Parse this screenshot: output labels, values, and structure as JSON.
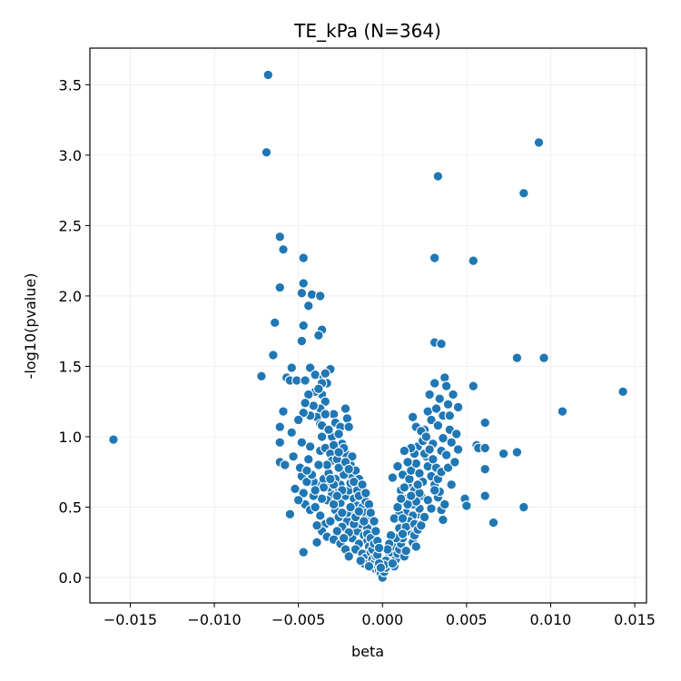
{
  "chart_data": {
    "type": "scatter",
    "title": "TE_kPa (N=364)",
    "xlabel": "beta",
    "ylabel": "-log10(pvalue)",
    "xlim": [
      -0.0174,
      0.0157
    ],
    "ylim": [
      -0.18,
      3.76
    ],
    "xticks": [
      -0.015,
      -0.01,
      -0.005,
      0.0,
      0.005,
      0.01,
      0.015
    ],
    "xtick_labels": [
      "−0.015",
      "−0.010",
      "−0.005",
      "0.000",
      "0.005",
      "0.010",
      "0.015"
    ],
    "yticks": [
      0.0,
      0.5,
      1.0,
      1.5,
      2.0,
      2.5,
      3.0,
      3.5
    ],
    "ytick_labels": [
      "0.0",
      "0.5",
      "1.0",
      "1.5",
      "2.0",
      "2.5",
      "3.0",
      "3.5"
    ],
    "grid": true,
    "color": "#1f77b4",
    "points": [
      [
        -0.016,
        0.98
      ],
      [
        -0.0068,
        3.57
      ],
      [
        -0.0069,
        3.02
      ],
      [
        -0.0061,
        2.42
      ],
      [
        -0.0059,
        2.33
      ],
      [
        -0.0047,
        2.27
      ],
      [
        -0.0061,
        2.06
      ],
      [
        -0.0047,
        2.09
      ],
      [
        -0.0048,
        2.02
      ],
      [
        -0.0042,
        2.01
      ],
      [
        -0.0037,
        2.0
      ],
      [
        -0.0044,
        1.93
      ],
      [
        -0.0064,
        1.81
      ],
      [
        -0.0047,
        1.79
      ],
      [
        -0.0036,
        1.76
      ],
      [
        -0.0048,
        1.68
      ],
      [
        -0.0038,
        1.72
      ],
      [
        -0.0065,
        1.58
      ],
      [
        -0.0072,
        1.43
      ],
      [
        -0.0054,
        1.49
      ],
      [
        -0.0057,
        1.42
      ],
      [
        -0.0055,
        1.4
      ],
      [
        -0.0051,
        1.4
      ],
      [
        -0.0046,
        1.4
      ],
      [
        -0.0043,
        1.49
      ],
      [
        -0.004,
        1.44
      ],
      [
        -0.0035,
        1.42
      ],
      [
        -0.0031,
        1.48
      ],
      [
        -0.0033,
        1.38
      ],
      [
        -0.0036,
        1.3
      ],
      [
        -0.0034,
        1.25
      ],
      [
        -0.0037,
        1.2
      ],
      [
        -0.0039,
        1.14
      ],
      [
        -0.0037,
        1.09
      ],
      [
        -0.0043,
        1.15
      ],
      [
        -0.0047,
        1.17
      ],
      [
        -0.0059,
        1.18
      ],
      [
        -0.0061,
        1.07
      ],
      [
        -0.0054,
        1.03
      ],
      [
        -0.0061,
        0.96
      ],
      [
        -0.0061,
        0.82
      ],
      [
        -0.0058,
        0.8
      ],
      [
        -0.0048,
        0.72
      ],
      [
        -0.0043,
        0.93
      ],
      [
        -0.0037,
        0.9
      ],
      [
        -0.0034,
        0.92
      ],
      [
        -0.0031,
        0.88
      ],
      [
        -0.003,
        0.83
      ],
      [
        -0.003,
        1.0
      ],
      [
        -0.0029,
        1.16
      ],
      [
        -0.0028,
        1.1
      ],
      [
        -0.0025,
        1.07
      ],
      [
        -0.0022,
        1.2
      ],
      [
        -0.0021,
        1.13
      ],
      [
        -0.002,
        1.07
      ],
      [
        -0.0024,
        0.95
      ],
      [
        -0.0027,
        0.84
      ],
      [
        -0.0022,
        0.88
      ],
      [
        -0.0019,
        0.8
      ],
      [
        -0.0018,
        0.72
      ],
      [
        -0.0016,
        0.76
      ],
      [
        -0.0014,
        0.7
      ],
      [
        -0.0013,
        0.64
      ],
      [
        -0.0023,
        0.73
      ],
      [
        -0.0025,
        0.66
      ],
      [
        -0.0027,
        0.62
      ],
      [
        -0.003,
        0.59
      ],
      [
        -0.0033,
        0.55
      ],
      [
        -0.0036,
        0.56
      ],
      [
        -0.0038,
        0.66
      ],
      [
        -0.0035,
        0.7
      ],
      [
        -0.0032,
        0.74
      ],
      [
        -0.0041,
        0.68
      ],
      [
        -0.0045,
        0.68
      ],
      [
        -0.0047,
        0.6
      ],
      [
        -0.0046,
        0.52
      ],
      [
        -0.0043,
        0.48
      ],
      [
        -0.004,
        0.5
      ],
      [
        -0.0037,
        0.44
      ],
      [
        -0.0034,
        0.38
      ],
      [
        -0.0036,
        0.33
      ],
      [
        -0.0039,
        0.37
      ],
      [
        -0.0033,
        0.29
      ],
      [
        -0.0031,
        0.4
      ],
      [
        -0.0028,
        0.48
      ],
      [
        -0.0025,
        0.53
      ],
      [
        -0.0022,
        0.58
      ],
      [
        -0.002,
        0.62
      ],
      [
        -0.0017,
        0.56
      ],
      [
        -0.0015,
        0.51
      ],
      [
        -0.0012,
        0.5
      ],
      [
        -0.001,
        0.46
      ],
      [
        -0.0018,
        0.44
      ],
      [
        -0.0021,
        0.4
      ],
      [
        -0.0024,
        0.36
      ],
      [
        -0.0027,
        0.33
      ],
      [
        -0.0029,
        0.27
      ],
      [
        -0.0025,
        0.24
      ],
      [
        -0.0022,
        0.2
      ],
      [
        -0.002,
        0.15
      ],
      [
        -0.0018,
        0.28
      ],
      [
        -0.0015,
        0.33
      ],
      [
        -0.0013,
        0.38
      ],
      [
        -0.0011,
        0.3
      ],
      [
        -0.0009,
        0.26
      ],
      [
        -0.0014,
        0.24
      ],
      [
        -0.0016,
        0.2
      ],
      [
        -0.0012,
        0.17
      ],
      [
        -0.001,
        0.14
      ],
      [
        -0.0008,
        0.22
      ],
      [
        -0.0007,
        0.18
      ],
      [
        -0.0006,
        0.13
      ],
      [
        -0.0005,
        0.1
      ],
      [
        -0.0004,
        0.06
      ],
      [
        -0.0003,
        0.08
      ],
      [
        -0.0002,
        0.05
      ],
      [
        -0.0001,
        0.03
      ],
      [
        -0.0004,
        0.15
      ],
      [
        -0.0006,
        0.2
      ],
      [
        -0.0011,
        0.1
      ],
      [
        -0.0013,
        0.12
      ],
      [
        -0.0008,
        0.08
      ],
      [
        -0.0039,
        0.25
      ],
      [
        -0.0047,
        0.18
      ],
      [
        -0.0055,
        0.45
      ],
      [
        -0.0048,
        0.96
      ],
      [
        -0.0036,
        1.08
      ],
      [
        -0.0026,
        1.02
      ],
      [
        -0.0023,
        0.92
      ],
      [
        -0.0018,
        0.86
      ],
      [
        -0.0026,
        0.78
      ],
      [
        -0.0028,
        0.7
      ],
      [
        -0.0024,
        0.62
      ],
      [
        -0.0019,
        0.67
      ],
      [
        -0.0015,
        0.62
      ],
      [
        -0.0012,
        0.58
      ],
      [
        -0.001,
        0.54
      ],
      [
        -0.0008,
        0.42
      ],
      [
        -0.0006,
        0.36
      ],
      [
        -0.0009,
        0.35
      ],
      [
        -0.0017,
        0.38
      ],
      [
        -0.002,
        0.32
      ],
      [
        -0.0023,
        0.28
      ],
      [
        -0.0026,
        0.43
      ],
      [
        -0.0032,
        0.64
      ],
      [
        -0.0029,
        0.52
      ],
      [
        -0.0041,
        0.58
      ],
      [
        -0.0044,
        0.84
      ],
      [
        -0.0034,
        1.16
      ],
      [
        -0.004,
        1.32
      ],
      [
        0.0,
        0.0
      ],
      [
        0.0001,
        0.04
      ],
      [
        0.0002,
        0.07
      ],
      [
        0.0003,
        0.11
      ],
      [
        0.0004,
        0.15
      ],
      [
        0.0005,
        0.18
      ],
      [
        0.0006,
        0.22
      ],
      [
        0.0007,
        0.08
      ],
      [
        0.0008,
        0.13
      ],
      [
        0.0009,
        0.17
      ],
      [
        0.001,
        0.2
      ],
      [
        0.0011,
        0.24
      ],
      [
        0.0012,
        0.28
      ],
      [
        0.0013,
        0.15
      ],
      [
        0.0014,
        0.19
      ],
      [
        0.0015,
        0.33
      ],
      [
        0.0016,
        0.37
      ],
      [
        0.0017,
        0.41
      ],
      [
        0.0018,
        0.25
      ],
      [
        0.0019,
        0.3
      ],
      [
        0.002,
        0.22
      ],
      [
        0.0021,
        0.45
      ],
      [
        0.0022,
        0.49
      ],
      [
        0.001,
        0.35
      ],
      [
        0.0008,
        0.28
      ],
      [
        0.0006,
        0.71
      ],
      [
        0.0009,
        0.79
      ],
      [
        0.0011,
        0.62
      ],
      [
        0.0012,
        0.73
      ],
      [
        0.0013,
        0.56
      ],
      [
        0.0014,
        0.46
      ],
      [
        0.0015,
        0.66
      ],
      [
        0.0016,
        0.7
      ],
      [
        0.0017,
        0.76
      ],
      [
        0.0018,
        0.52
      ],
      [
        0.0019,
        0.62
      ],
      [
        0.002,
        0.81
      ],
      [
        0.0021,
        0.93
      ],
      [
        0.0022,
        0.74
      ],
      [
        0.0023,
        0.58
      ],
      [
        0.0024,
        0.97
      ],
      [
        0.0025,
        1.05
      ],
      [
        0.0026,
        0.86
      ],
      [
        0.0027,
        1.18
      ],
      [
        0.0028,
        1.3
      ],
      [
        0.0029,
        1.12
      ],
      [
        0.003,
        0.95
      ],
      [
        0.0031,
        1.38
      ],
      [
        0.0032,
        1.2
      ],
      [
        0.0033,
        1.08
      ],
      [
        0.0034,
        1.27
      ],
      [
        0.0035,
        0.9
      ],
      [
        0.0036,
        1.15
      ],
      [
        0.0037,
        1.42
      ],
      [
        0.0038,
        1.36
      ],
      [
        0.0039,
        1.23
      ],
      [
        0.004,
        1.05
      ],
      [
        0.0041,
        0.96
      ],
      [
        0.0018,
        1.14
      ],
      [
        0.002,
        1.07
      ],
      [
        0.0023,
        1.04
      ],
      [
        0.0025,
        0.88
      ],
      [
        0.0027,
        0.79
      ],
      [
        0.0029,
        0.72
      ],
      [
        0.0031,
        0.66
      ],
      [
        0.0033,
        0.57
      ],
      [
        0.0035,
        0.48
      ],
      [
        0.0037,
        0.52
      ],
      [
        0.0036,
        0.41
      ],
      [
        0.0034,
        0.61
      ],
      [
        0.0032,
        0.78
      ],
      [
        0.003,
        0.84
      ],
      [
        0.0028,
        0.91
      ],
      [
        0.0026,
        1.0
      ],
      [
        0.0024,
        0.68
      ],
      [
        0.0022,
        0.6
      ],
      [
        0.002,
        0.54
      ],
      [
        0.0018,
        0.44
      ],
      [
        0.0016,
        0.4
      ],
      [
        0.0014,
        0.36
      ],
      [
        0.0012,
        0.31
      ],
      [
        0.001,
        0.45
      ],
      [
        0.0011,
        0.53
      ],
      [
        0.0013,
        0.64
      ],
      [
        0.0015,
        0.52
      ],
      [
        0.0017,
        0.58
      ],
      [
        0.0019,
        0.38
      ],
      [
        0.0021,
        0.34
      ],
      [
        0.0023,
        0.37
      ],
      [
        0.0025,
        0.43
      ],
      [
        0.0027,
        0.55
      ],
      [
        0.0029,
        0.49
      ],
      [
        0.0031,
        0.62
      ],
      [
        0.0033,
        0.7
      ],
      [
        0.0035,
        0.75
      ],
      [
        0.0036,
        0.99
      ],
      [
        0.0038,
        0.87
      ],
      [
        0.004,
        1.15
      ],
      [
        0.0031,
        1.67
      ],
      [
        0.0035,
        1.66
      ],
      [
        0.0033,
        2.85
      ],
      [
        0.0031,
        2.27
      ],
      [
        0.0054,
        2.25
      ],
      [
        0.0054,
        1.36
      ],
      [
        0.0045,
        1.21
      ],
      [
        0.0045,
        0.91
      ],
      [
        0.0056,
        0.94
      ],
      [
        0.0057,
        0.92
      ],
      [
        0.0061,
        0.92
      ],
      [
        0.0061,
        1.1
      ],
      [
        0.0061,
        0.77
      ],
      [
        0.0061,
        0.58
      ],
      [
        0.0049,
        0.56
      ],
      [
        0.005,
        0.51
      ],
      [
        0.0066,
        0.39
      ],
      [
        0.0072,
        0.88
      ],
      [
        0.008,
        0.89
      ],
      [
        0.008,
        1.56
      ],
      [
        0.0084,
        0.5
      ],
      [
        0.0084,
        2.73
      ],
      [
        0.0093,
        3.09
      ],
      [
        0.0096,
        1.56
      ],
      [
        0.0107,
        1.18
      ],
      [
        0.0143,
        1.32
      ],
      [
        0.0007,
        0.42
      ],
      [
        0.0009,
        0.5
      ],
      [
        0.0005,
        0.3
      ],
      [
        0.0004,
        0.24
      ],
      [
        0.0003,
        0.2
      ],
      [
        0.0002,
        0.12
      ],
      [
        0.0001,
        0.09
      ],
      [
        0.0006,
        0.1
      ],
      [
        0.0039,
        0.78
      ],
      [
        0.0041,
        0.66
      ],
      [
        0.0042,
        1.3
      ],
      [
        0.0044,
        1.02
      ],
      [
        0.0043,
        0.82
      ],
      [
        0.0021,
        0.66
      ],
      [
        0.0019,
        0.88
      ],
      [
        0.0017,
        0.92
      ],
      [
        0.0015,
        0.82
      ],
      [
        0.0013,
        0.9
      ],
      [
        0.0012,
        0.42
      ],
      [
        0.0011,
        0.56
      ],
      [
        -0.0021,
        0.46
      ],
      [
        -0.0019,
        0.5
      ],
      [
        -0.0016,
        0.43
      ],
      [
        -0.0014,
        0.47
      ],
      [
        -0.0011,
        0.4
      ],
      [
        -0.0009,
        0.31
      ],
      [
        -0.0007,
        0.28
      ],
      [
        -0.0005,
        0.24
      ],
      [
        -0.0003,
        0.16
      ],
      [
        -0.0002,
        0.1
      ],
      [
        -0.0001,
        0.07
      ],
      [
        -0.0024,
        0.46
      ],
      [
        -0.0027,
        0.58
      ],
      [
        -0.0029,
        0.66
      ],
      [
        -0.0031,
        0.7
      ],
      [
        -0.0033,
        0.8
      ],
      [
        -0.0035,
        0.64
      ],
      [
        -0.0038,
        0.8
      ],
      [
        -0.004,
        0.62
      ],
      [
        -0.0042,
        0.73
      ],
      [
        -0.0036,
        1.0
      ],
      [
        -0.0032,
        1.05
      ],
      [
        -0.0029,
        0.94
      ],
      [
        -0.0026,
        0.89
      ],
      [
        -0.0022,
        0.82
      ],
      [
        -0.002,
        0.77
      ],
      [
        -0.0017,
        0.68
      ],
      [
        -0.0014,
        0.58
      ],
      [
        -0.0012,
        0.66
      ],
      [
        -0.001,
        0.6
      ],
      [
        -0.0008,
        0.52
      ],
      [
        -0.0007,
        0.46
      ],
      [
        -0.0005,
        0.4
      ],
      [
        -0.0004,
        0.33
      ],
      [
        -0.0003,
        0.26
      ],
      [
        -0.0002,
        0.21
      ],
      [
        -0.0036,
        1.38
      ],
      [
        -0.0034,
        1.45
      ],
      [
        -0.0038,
        1.34
      ],
      [
        -0.0041,
        1.22
      ],
      [
        -0.0044,
        1.3
      ],
      [
        -0.0046,
        1.24
      ],
      [
        -0.005,
        1.12
      ],
      [
        -0.0053,
        0.86
      ],
      [
        -0.0049,
        0.78
      ],
      [
        -0.0045,
        0.76
      ],
      [
        -0.0052,
        0.63
      ],
      [
        -0.005,
        0.55
      ]
    ]
  }
}
